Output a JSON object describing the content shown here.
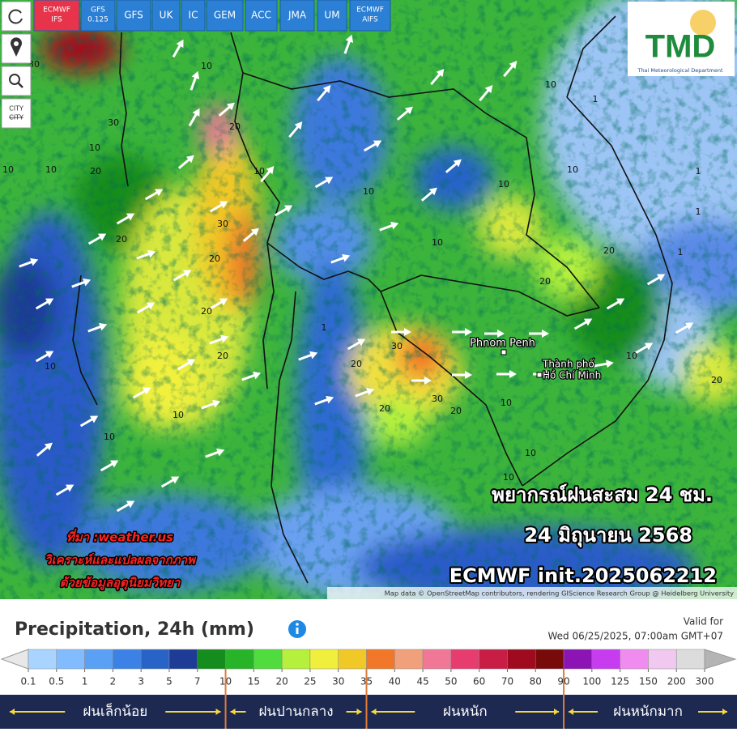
{
  "model_buttons": [
    [
      "ECMWF",
      "IFS"
    ],
    [
      "GFS",
      "0.125"
    ],
    [
      "GFS"
    ],
    [
      "UK"
    ],
    [
      "IC"
    ],
    [
      "GEM"
    ],
    [
      "ACC"
    ],
    [
      "JMA"
    ],
    [
      "UM"
    ],
    [
      "ECMWF",
      "AIFS"
    ]
  ],
  "tools": {
    "city": "CITY",
    "city_off": "CITY"
  },
  "logo": {
    "name": "TMD",
    "subtitle": "Thai Meteorological Department"
  },
  "overlay": {
    "title": "พยากรณ์ฝนสะสม 24 ชม.",
    "date": "24 มิถุนายน 2568",
    "model": "ECMWF init.2025062212",
    "source": "ที่มา :weather.us",
    "analysis_1": "วิเคราะห์และแปลผลจากภาพ",
    "analysis_2": "ด้วยข้อมูลอุตุนิยมวิทยา"
  },
  "map": {
    "cities": [
      "Phnom Penh",
      "Thành phố",
      "Hồ Chí Minh"
    ],
    "contour_labels": [
      "30",
      "30",
      "10",
      "20",
      "10",
      "20",
      "10",
      "10",
      "30",
      "20",
      "20",
      "20",
      "10",
      "20",
      "10",
      "10",
      "30",
      "20",
      "30",
      "20",
      "10",
      "10",
      "10",
      "20",
      "20",
      "10",
      "10",
      "1",
      "1",
      "1",
      "1",
      "20",
      "10",
      "10",
      "10",
      "1",
      "10",
      "10",
      "20"
    ],
    "attribution": "Map data © OpenStreetMap contributors, rendering GIScience Research Group @ Heidelberg University"
  },
  "legend": {
    "title": "Precipitation, 24h (mm)",
    "valid_label": "Valid for",
    "valid_time": "Wed 06/25/2025, 07:00am GMT+07",
    "levels": [
      0.1,
      0.5,
      1,
      2,
      3,
      5,
      7,
      10,
      15,
      20,
      25,
      30,
      35,
      40,
      45,
      50,
      60,
      70,
      80,
      90,
      100,
      125,
      150,
      200,
      300
    ],
    "colors": [
      "#e8e8e8",
      "#a8d4ff",
      "#82bcff",
      "#5aa0f5",
      "#3c82e6",
      "#2864c8",
      "#1e3c96",
      "#148c1e",
      "#28b428",
      "#50dc3c",
      "#b4f03c",
      "#f0f03c",
      "#f0c828",
      "#f07828",
      "#f0a07a",
      "#f07896",
      "#e63c6e",
      "#c81e46",
      "#a00a1e",
      "#780a0a",
      "#8c14b4",
      "#c83cf0",
      "#f08cf0",
      "#f0c8f0",
      "#dcdcdc",
      "#b4b4b4"
    ],
    "class_bounds": [
      10,
      35,
      90
    ],
    "classes": [
      "ฝนเล็กน้อย",
      "ฝนปานกลาง",
      "ฝนหนัก",
      "ฝนหนักมาก"
    ]
  }
}
